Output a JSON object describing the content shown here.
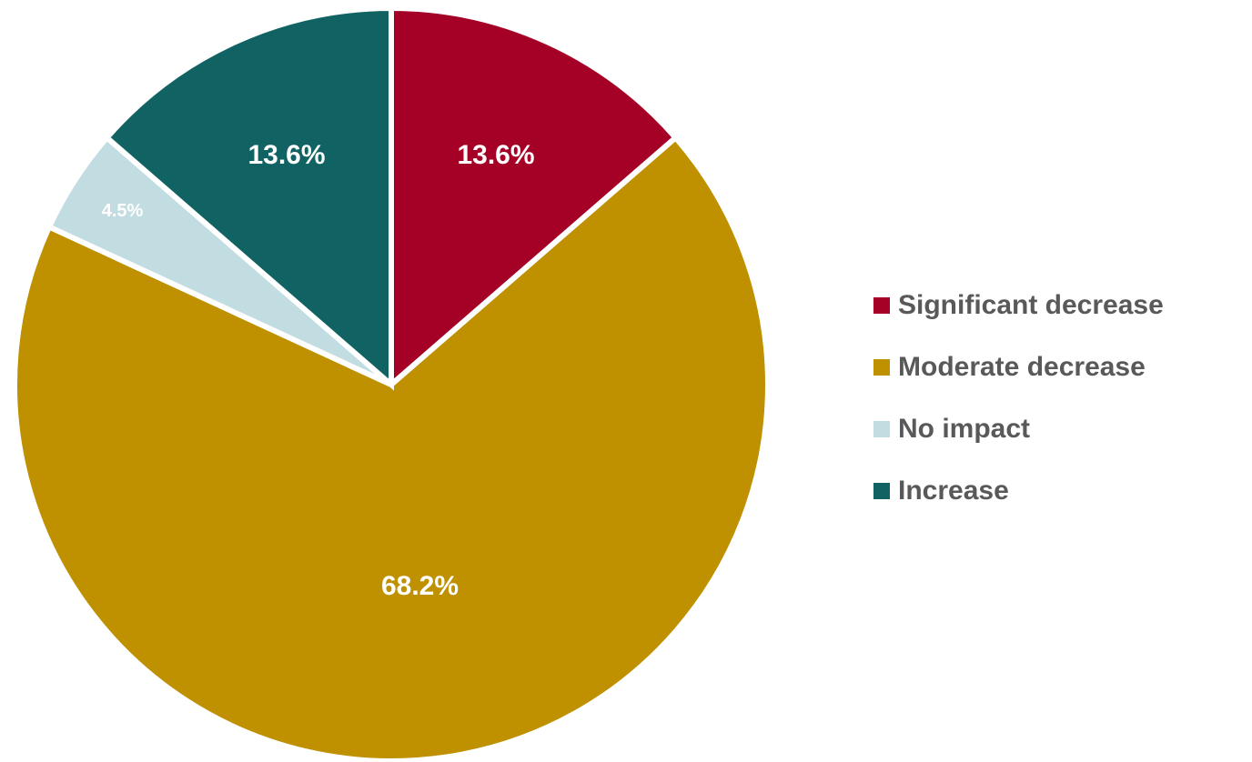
{
  "chart_data": {
    "type": "pie",
    "title": "",
    "start_angle_deg": 0,
    "direction": "clockwise",
    "legend_position": "right",
    "slices": [
      {
        "label": "Significant decrease",
        "value": 13.6,
        "display": "13.6%",
        "color": "#A50026"
      },
      {
        "label": "Moderate decrease",
        "value": 68.2,
        "display": "68.2%",
        "color": "#BF9000"
      },
      {
        "label": "No impact",
        "value": 4.5,
        "display": "4.5%",
        "color": "#C2DDE2"
      },
      {
        "label": "Increase",
        "value": 13.6,
        "display": "13.6%",
        "color": "#116363"
      }
    ],
    "legend": [
      {
        "label": "Significant decrease",
        "color": "#A50026"
      },
      {
        "label": "Moderate decrease",
        "color": "#BF9000"
      },
      {
        "label": "No impact",
        "color": "#C2DDE2"
      },
      {
        "label": "Increase",
        "color": "#116363"
      }
    ]
  }
}
